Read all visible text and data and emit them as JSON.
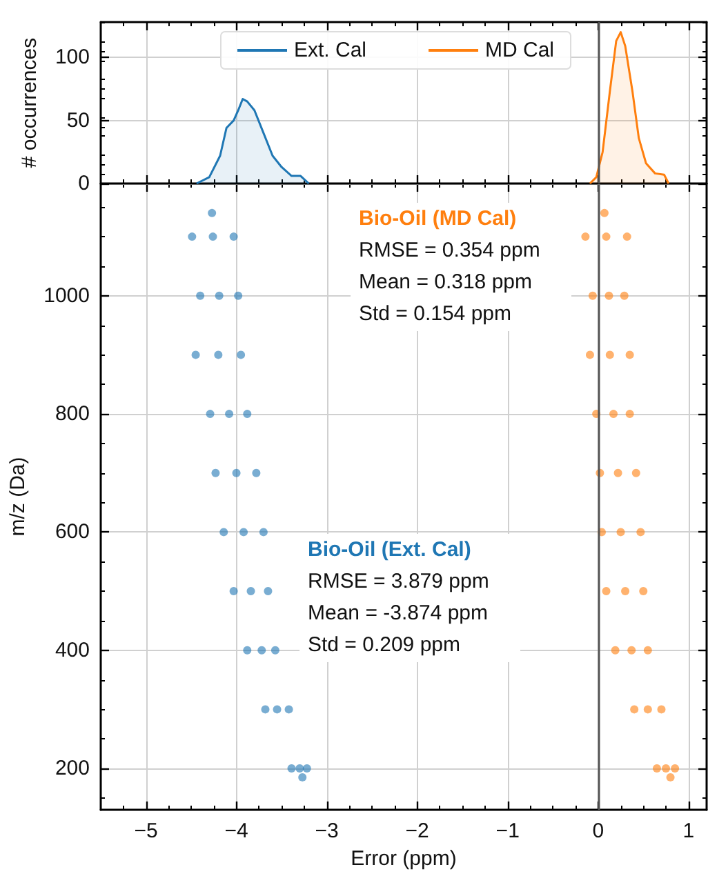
{
  "chart_data": [
    {
      "type": "area",
      "ylabel": "# occurrences",
      "xlim": [
        -5.5,
        1.2
      ],
      "xticks": [
        {
          "value": -5,
          "label": null
        },
        {
          "value": -4,
          "label": null
        },
        {
          "value": -3,
          "label": null
        },
        {
          "value": -2,
          "label": null
        },
        {
          "value": -1,
          "label": null
        },
        {
          "value": 0,
          "label": null
        },
        {
          "value": 1,
          "label": null
        }
      ],
      "ylim": [
        0,
        128
      ],
      "yticks": [
        0,
        50,
        100
      ],
      "tick_labels": "y",
      "grid": true,
      "legend": "top",
      "marker": "none",
      "ref_lines": [
        {
          "axis": "x",
          "value": 0,
          "color": "#555555"
        }
      ],
      "series": [
        {
          "name": "Ext. Cal",
          "color": "#1f77b4",
          "x": [
            -4.44,
            -4.3,
            -4.18,
            -4.11,
            -4.03,
            -3.98,
            -3.93,
            -3.88,
            -3.8,
            -3.7,
            -3.6,
            -3.5,
            -3.39,
            -3.29,
            -3.2
          ],
          "values": [
            0,
            5,
            22,
            44,
            50,
            58,
            67,
            65,
            58,
            40,
            22,
            13,
            6,
            6,
            0
          ]
        },
        {
          "name": "MD Cal",
          "color": "#ff7f0e",
          "x": [
            -0.09,
            -0.02,
            0.05,
            0.13,
            0.2,
            0.25,
            0.3,
            0.38,
            0.45,
            0.53,
            0.63,
            0.73,
            0.78
          ],
          "values": [
            0,
            5,
            25,
            73,
            113,
            120,
            109,
            73,
            36,
            16,
            8,
            7,
            0
          ]
        }
      ]
    },
    {
      "type": "scatter",
      "xlabel": "Error (ppm)",
      "ylabel": "m/z (Da)",
      "xlim": [
        -5.5,
        1.2
      ],
      "xticks": [
        {
          "value": -5,
          "label": "−5"
        },
        {
          "value": -4,
          "label": "−4"
        },
        {
          "value": -3,
          "label": "−3"
        },
        {
          "value": -2,
          "label": "−2"
        },
        {
          "value": -1,
          "label": "−1"
        },
        0,
        1
      ],
      "ylim": [
        130,
        1190
      ],
      "yticks": [
        200,
        400,
        600,
        800,
        1000
      ],
      "grid": true,
      "marker": "circle",
      "ref_lines": [
        {
          "axis": "x",
          "value": 0,
          "color": "#555555"
        }
      ],
      "annotations": [
        "RMSE = 3.879 ppm",
        "Mean = -3.874 ppm",
        "Std = 0.209 ppm",
        "RMSE = 0.354 ppm",
        "Mean = 0.318 ppm",
        "Std = 0.154 ppm"
      ],
      "series": [
        {
          "name": "Bio-Oil (Ext. Cal)",
          "color": "#1f77b4",
          "x": [
            -4.27,
            -4.49,
            -4.26,
            -4.03,
            -4.4,
            -4.19,
            -3.98,
            -4.45,
            -4.2,
            -3.95,
            -4.29,
            -4.08,
            -3.88,
            -4.23,
            -4.0,
            -3.78,
            -4.14,
            -3.92,
            -3.7,
            -4.03,
            -3.84,
            -3.65,
            -3.88,
            -3.72,
            -3.57,
            -3.68,
            -3.55,
            -3.42,
            -3.39,
            -3.3,
            -3.22,
            -3.27
          ],
          "values": [
            1140,
            1100,
            1100,
            1100,
            1000,
            1000,
            1000,
            900,
            900,
            900,
            800,
            800,
            800,
            700,
            700,
            700,
            600,
            600,
            600,
            500,
            500,
            500,
            400,
            400,
            400,
            300,
            300,
            300,
            200,
            200,
            200,
            185
          ]
        },
        {
          "name": "Bio-Oil (MD Cal)",
          "color": "#ff7f0e",
          "x": [
            0.07,
            -0.14,
            0.09,
            0.32,
            -0.06,
            0.12,
            0.29,
            -0.09,
            0.13,
            0.35,
            -0.02,
            0.17,
            0.35,
            0.02,
            0.22,
            0.42,
            0.04,
            0.25,
            0.47,
            0.09,
            0.3,
            0.5,
            0.19,
            0.37,
            0.55,
            0.4,
            0.55,
            0.7,
            0.65,
            0.75,
            0.85,
            0.8
          ],
          "values": [
            1140,
            1100,
            1100,
            1100,
            1000,
            1000,
            1000,
            900,
            900,
            900,
            800,
            800,
            800,
            700,
            700,
            700,
            600,
            600,
            600,
            500,
            500,
            500,
            400,
            400,
            400,
            300,
            300,
            300,
            200,
            200,
            200,
            185
          ]
        }
      ]
    }
  ]
}
